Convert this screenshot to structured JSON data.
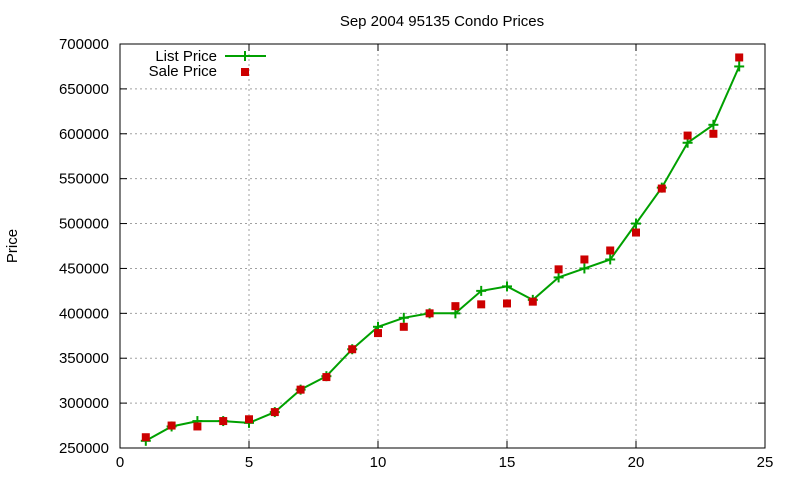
{
  "chart_data": {
    "type": "line",
    "title": "Sep 2004 95135 Condo Prices",
    "xlabel": "",
    "ylabel": "Price",
    "xlim": [
      0,
      25
    ],
    "ylim": [
      250000,
      700000
    ],
    "x_ticks": [
      0,
      5,
      10,
      15,
      20,
      25
    ],
    "y_ticks": [
      250000,
      300000,
      350000,
      400000,
      450000,
      500000,
      550000,
      600000,
      650000,
      700000
    ],
    "grid": true,
    "legend_position": "top-left",
    "series": [
      {
        "name": "List Price",
        "style": "line-with-plus-markers",
        "color": "#00a000",
        "x": [
          1,
          2,
          3,
          4,
          5,
          6,
          7,
          8,
          9,
          10,
          11,
          12,
          13,
          14,
          15,
          16,
          17,
          18,
          19,
          20,
          21,
          22,
          23,
          24
        ],
        "y": [
          258000,
          274000,
          280000,
          280000,
          278000,
          290000,
          315000,
          330000,
          360000,
          385000,
          395000,
          400000,
          400000,
          425000,
          430000,
          415000,
          440000,
          450000,
          460000,
          500000,
          540000,
          590000,
          610000,
          675000
        ]
      },
      {
        "name": "Sale Price",
        "style": "square-markers",
        "color": "#cc0000",
        "x": [
          1,
          2,
          3,
          4,
          5,
          6,
          7,
          8,
          9,
          10,
          11,
          12,
          13,
          14,
          15,
          16,
          17,
          18,
          19,
          20,
          21,
          22,
          23,
          24
        ],
        "y": [
          262000,
          275000,
          274000,
          280000,
          282000,
          290000,
          315000,
          329000,
          360000,
          378000,
          385000,
          400000,
          408000,
          410000,
          411000,
          413000,
          449000,
          460000,
          470000,
          490000,
          539000,
          598000,
          600000,
          685000
        ]
      }
    ]
  }
}
